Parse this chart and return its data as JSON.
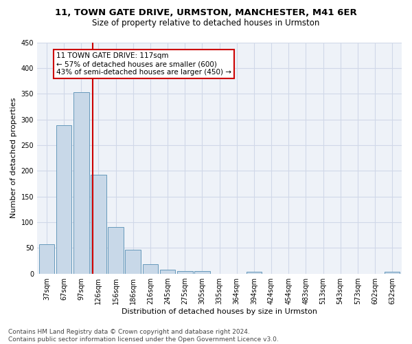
{
  "title1": "11, TOWN GATE DRIVE, URMSTON, MANCHESTER, M41 6ER",
  "title2": "Size of property relative to detached houses in Urmston",
  "xlabel": "Distribution of detached houses by size in Urmston",
  "ylabel": "Number of detached properties",
  "footnote": "Contains HM Land Registry data © Crown copyright and database right 2024.\nContains public sector information licensed under the Open Government Licence v3.0.",
  "bin_labels": [
    "37sqm",
    "67sqm",
    "97sqm",
    "126sqm",
    "156sqm",
    "186sqm",
    "216sqm",
    "245sqm",
    "275sqm",
    "305sqm",
    "335sqm",
    "364sqm",
    "394sqm",
    "424sqm",
    "454sqm",
    "483sqm",
    "513sqm",
    "543sqm",
    "573sqm",
    "602sqm",
    "632sqm"
  ],
  "bar_heights": [
    57,
    289,
    353,
    192,
    90,
    46,
    18,
    8,
    5,
    5,
    0,
    0,
    3,
    0,
    0,
    0,
    0,
    0,
    0,
    0,
    3
  ],
  "bar_color": "#c8d8e8",
  "bar_edge_color": "#6699bb",
  "vline_x": 2.67,
  "vline_color": "#cc0000",
  "annotation_text": "11 TOWN GATE DRIVE: 117sqm\n← 57% of detached houses are smaller (600)\n43% of semi-detached houses are larger (450) →",
  "annotation_box_color": "#ffffff",
  "annotation_box_edge": "#cc0000",
  "ylim": [
    0,
    450
  ],
  "yticks": [
    0,
    50,
    100,
    150,
    200,
    250,
    300,
    350,
    400,
    450
  ],
  "grid_color": "#d0d8e8",
  "bg_color": "#eef2f8",
  "title1_fontsize": 9.5,
  "title2_fontsize": 8.5,
  "xlabel_fontsize": 8,
  "ylabel_fontsize": 8,
  "tick_fontsize": 7,
  "annot_fontsize": 7.5,
  "footnote_fontsize": 6.5
}
